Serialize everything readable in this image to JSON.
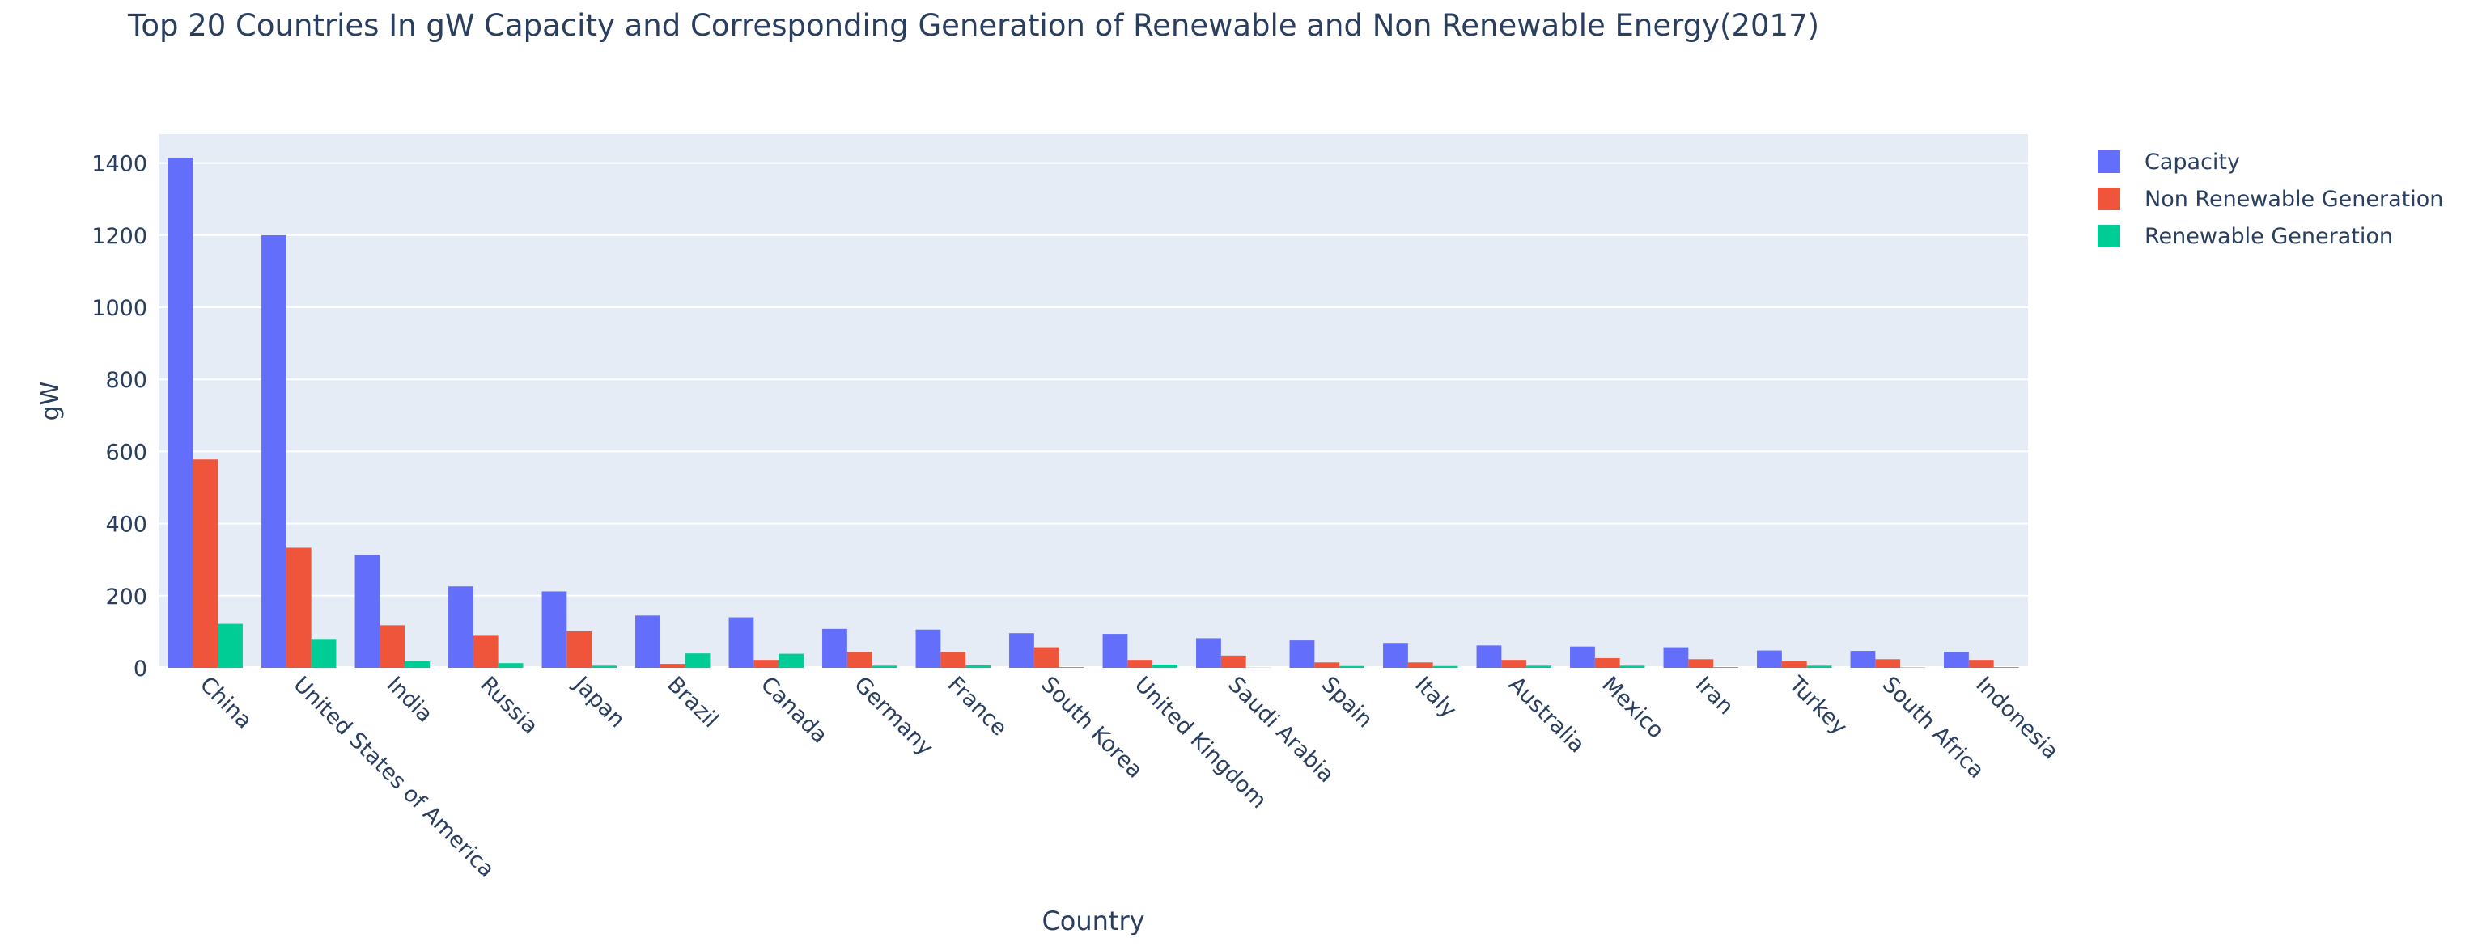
{
  "chart_data": {
    "type": "bar",
    "title": "Top 20 Countries In gW Capacity and Corresponding Generation of Renewable and Non Renewable Energy(2017)",
    "xlabel": "Country",
    "ylabel": "gW",
    "ylim": [
      0,
      1480
    ],
    "yticks": [
      0,
      200,
      400,
      600,
      800,
      1000,
      1200,
      1400
    ],
    "grid": true,
    "legend_position": "top-right",
    "categories": [
      "China",
      "United States of America",
      "India",
      "Russia",
      "Japan",
      "Brazil",
      "Canada",
      "Germany",
      "France",
      "South Korea",
      "United Kingdom",
      "Saudi Arabia",
      "Spain",
      "Italy",
      "Australia",
      "Mexico",
      "Iran",
      "Turkey",
      "South Africa",
      "Indonesia"
    ],
    "series": [
      {
        "name": "Capacity",
        "color": "#636efa",
        "values": [
          1415,
          1200,
          313,
          226,
          212,
          145,
          140,
          108,
          106,
          96,
          94,
          82,
          76,
          69,
          62,
          59,
          57,
          48,
          47,
          44
        ]
      },
      {
        "name": "Non Renewable Generation",
        "color": "#ef553b",
        "values": [
          578,
          333,
          118,
          91,
          101,
          11,
          22,
          44,
          44,
          57,
          22,
          34,
          15,
          15,
          22,
          27,
          24,
          19,
          24,
          22
        ]
      },
      {
        "name": "Renewable Generation",
        "color": "#00cc96",
        "values": [
          122,
          80,
          18,
          13,
          6,
          40,
          39,
          6,
          7,
          2,
          9,
          0.5,
          5,
          5,
          6,
          6,
          2,
          6,
          1,
          2
        ]
      }
    ]
  }
}
